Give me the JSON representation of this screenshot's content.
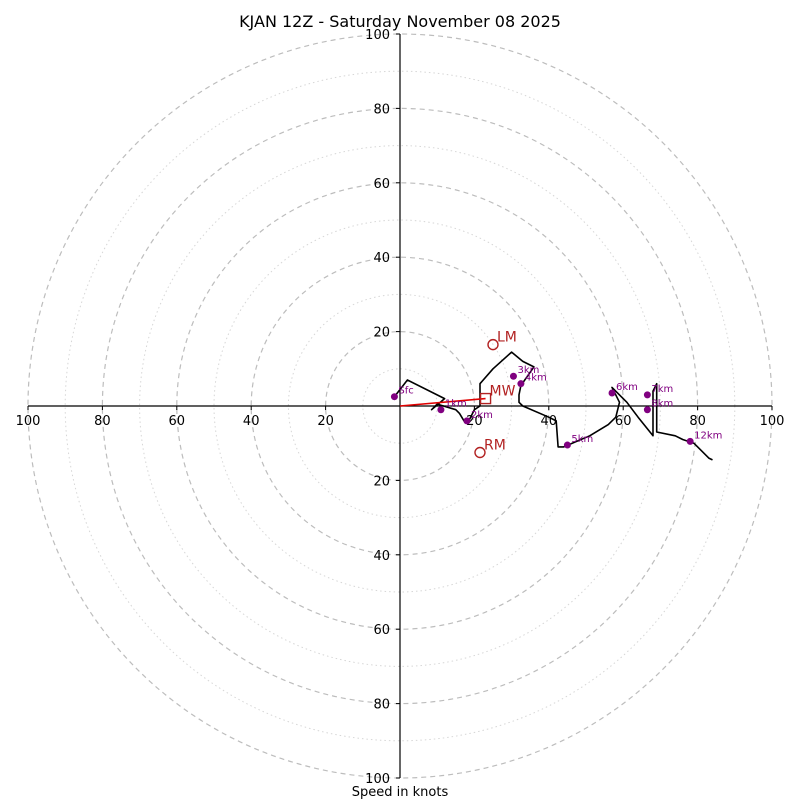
{
  "chart_data": {
    "type": "hodograph",
    "title": "KJAN 12Z - Saturday November 08 2025",
    "xlabel": "Speed in knots",
    "units": "knots",
    "max_speed": 100,
    "ring_major": [
      20,
      40,
      60,
      80,
      100
    ],
    "ring_minor": [
      10,
      30,
      50,
      70,
      90
    ],
    "tick_values": [
      20,
      40,
      60,
      80,
      100
    ],
    "colors": {
      "trace": "#000000",
      "height_points": "#800080",
      "storm_motion": "#b22222",
      "shear_vector": "#e00000"
    },
    "hodograph_trace": [
      [
        -1.5,
        2.5
      ],
      [
        2,
        7
      ],
      [
        12,
        2
      ],
      [
        8.5,
        -1
      ],
      [
        10,
        0.5
      ],
      [
        15,
        -1
      ],
      [
        16,
        -2
      ],
      [
        17.5,
        -4.5
      ],
      [
        18.5,
        -4
      ],
      [
        20,
        -1
      ],
      [
        21.5,
        0
      ],
      [
        21.5,
        2
      ],
      [
        21.5,
        6
      ],
      [
        25,
        10
      ],
      [
        30,
        14.5
      ],
      [
        33,
        12
      ],
      [
        36,
        10.5
      ],
      [
        32.5,
        5.5
      ],
      [
        32,
        3
      ],
      [
        32,
        1
      ],
      [
        33,
        0
      ],
      [
        40,
        -3
      ],
      [
        42,
        -4
      ],
      [
        42.5,
        -11
      ],
      [
        44,
        -11
      ],
      [
        51,
        -8
      ],
      [
        56,
        -5
      ],
      [
        58,
        -3
      ],
      [
        59,
        1
      ],
      [
        57,
        5
      ],
      [
        61,
        1
      ],
      [
        64,
        -3
      ],
      [
        68,
        -8
      ],
      [
        68,
        4
      ],
      [
        69,
        6
      ],
      [
        69,
        1
      ],
      [
        69,
        -7
      ],
      [
        74,
        -8
      ],
      [
        76,
        -9
      ],
      [
        79,
        -10
      ],
      [
        83,
        -14
      ],
      [
        84,
        -14.5
      ]
    ],
    "height_points": [
      {
        "label": "Sfc",
        "u": -1.5,
        "v": 2.5
      },
      {
        "label": "1km",
        "u": 11,
        "v": -1
      },
      {
        "label": "2km",
        "u": 18,
        "v": -4
      },
      {
        "label": "3km",
        "u": 30.5,
        "v": 8
      },
      {
        "label": "4km",
        "u": 32.5,
        "v": 6
      },
      {
        "label": "5km",
        "u": 45,
        "v": -10.5
      },
      {
        "label": "6km",
        "u": 57,
        "v": 3.5
      },
      {
        "label": "7km",
        "u": 66.5,
        "v": 3
      },
      {
        "label": "8km",
        "u": 66.5,
        "v": -1
      },
      {
        "label": "12km",
        "u": 78,
        "v": -9.5
      }
    ],
    "storm_motions": [
      {
        "label": "LM",
        "u": 25,
        "v": 16.5,
        "marker": "circle"
      },
      {
        "label": "RM",
        "u": 21.5,
        "v": -12.5,
        "marker": "circle"
      },
      {
        "label": "MW",
        "u": 23,
        "v": 2,
        "marker": "square"
      }
    ],
    "shear_vector": {
      "from": [
        0,
        0
      ],
      "to": [
        23,
        2
      ]
    }
  }
}
